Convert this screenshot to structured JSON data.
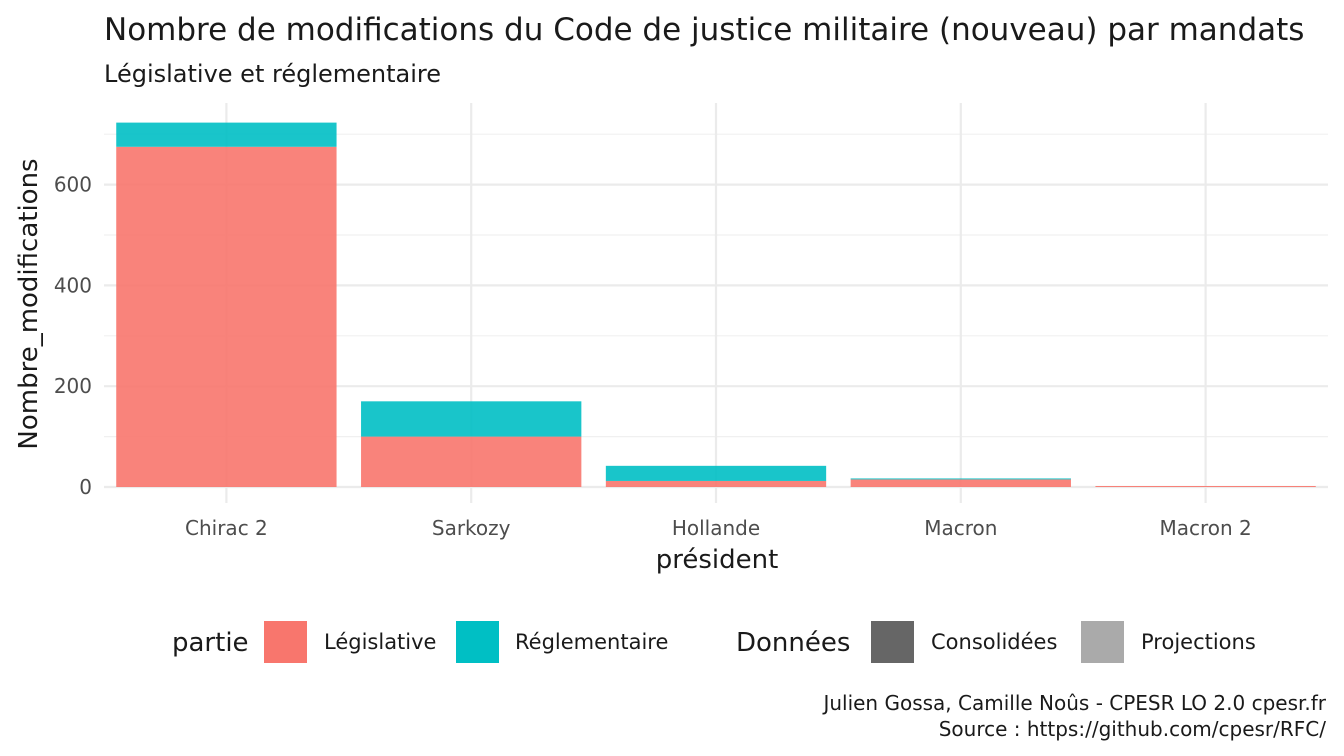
{
  "chart_data": {
    "type": "bar",
    "stacked": true,
    "title": "Nombre de modifications du Code de justice militaire (nouveau) par mandats",
    "subtitle": "Législative et réglementaire",
    "xlabel": "président",
    "ylabel": "Nombre_modifications",
    "categories": [
      "Chirac 2",
      "Sarkozy",
      "Hollande",
      "Macron",
      "Macron 2"
    ],
    "series": [
      {
        "name": "Législative",
        "color": "#F8766D",
        "values": [
          675,
          100,
          12,
          15,
          2
        ]
      },
      {
        "name": "Réglementaire",
        "color": "#00BFC4",
        "values": [
          48,
          70,
          30,
          2,
          0
        ]
      }
    ],
    "ylim": [
      0,
      750
    ],
    "yticks": [
      0,
      200,
      400,
      600
    ],
    "ytick_labels": [
      "0",
      "200",
      "400",
      "600"
    ],
    "grid": true,
    "legend_position": "bottom",
    "legends": [
      {
        "title": "partie",
        "items": [
          {
            "label": "Législative",
            "color": "#F8766D"
          },
          {
            "label": "Réglementaire",
            "color": "#00BFC4"
          }
        ]
      },
      {
        "title": "Données",
        "items": [
          {
            "label": "Consolidées",
            "color": "#666666"
          },
          {
            "label": "Projections",
            "color": "#AAAAAA"
          }
        ]
      }
    ],
    "caption": [
      "Julien Gossa, Camille Noûs - CPESR LO 2.0 cpesr.fr",
      "Source : https://github.com/cpesr/RFC/"
    ]
  }
}
